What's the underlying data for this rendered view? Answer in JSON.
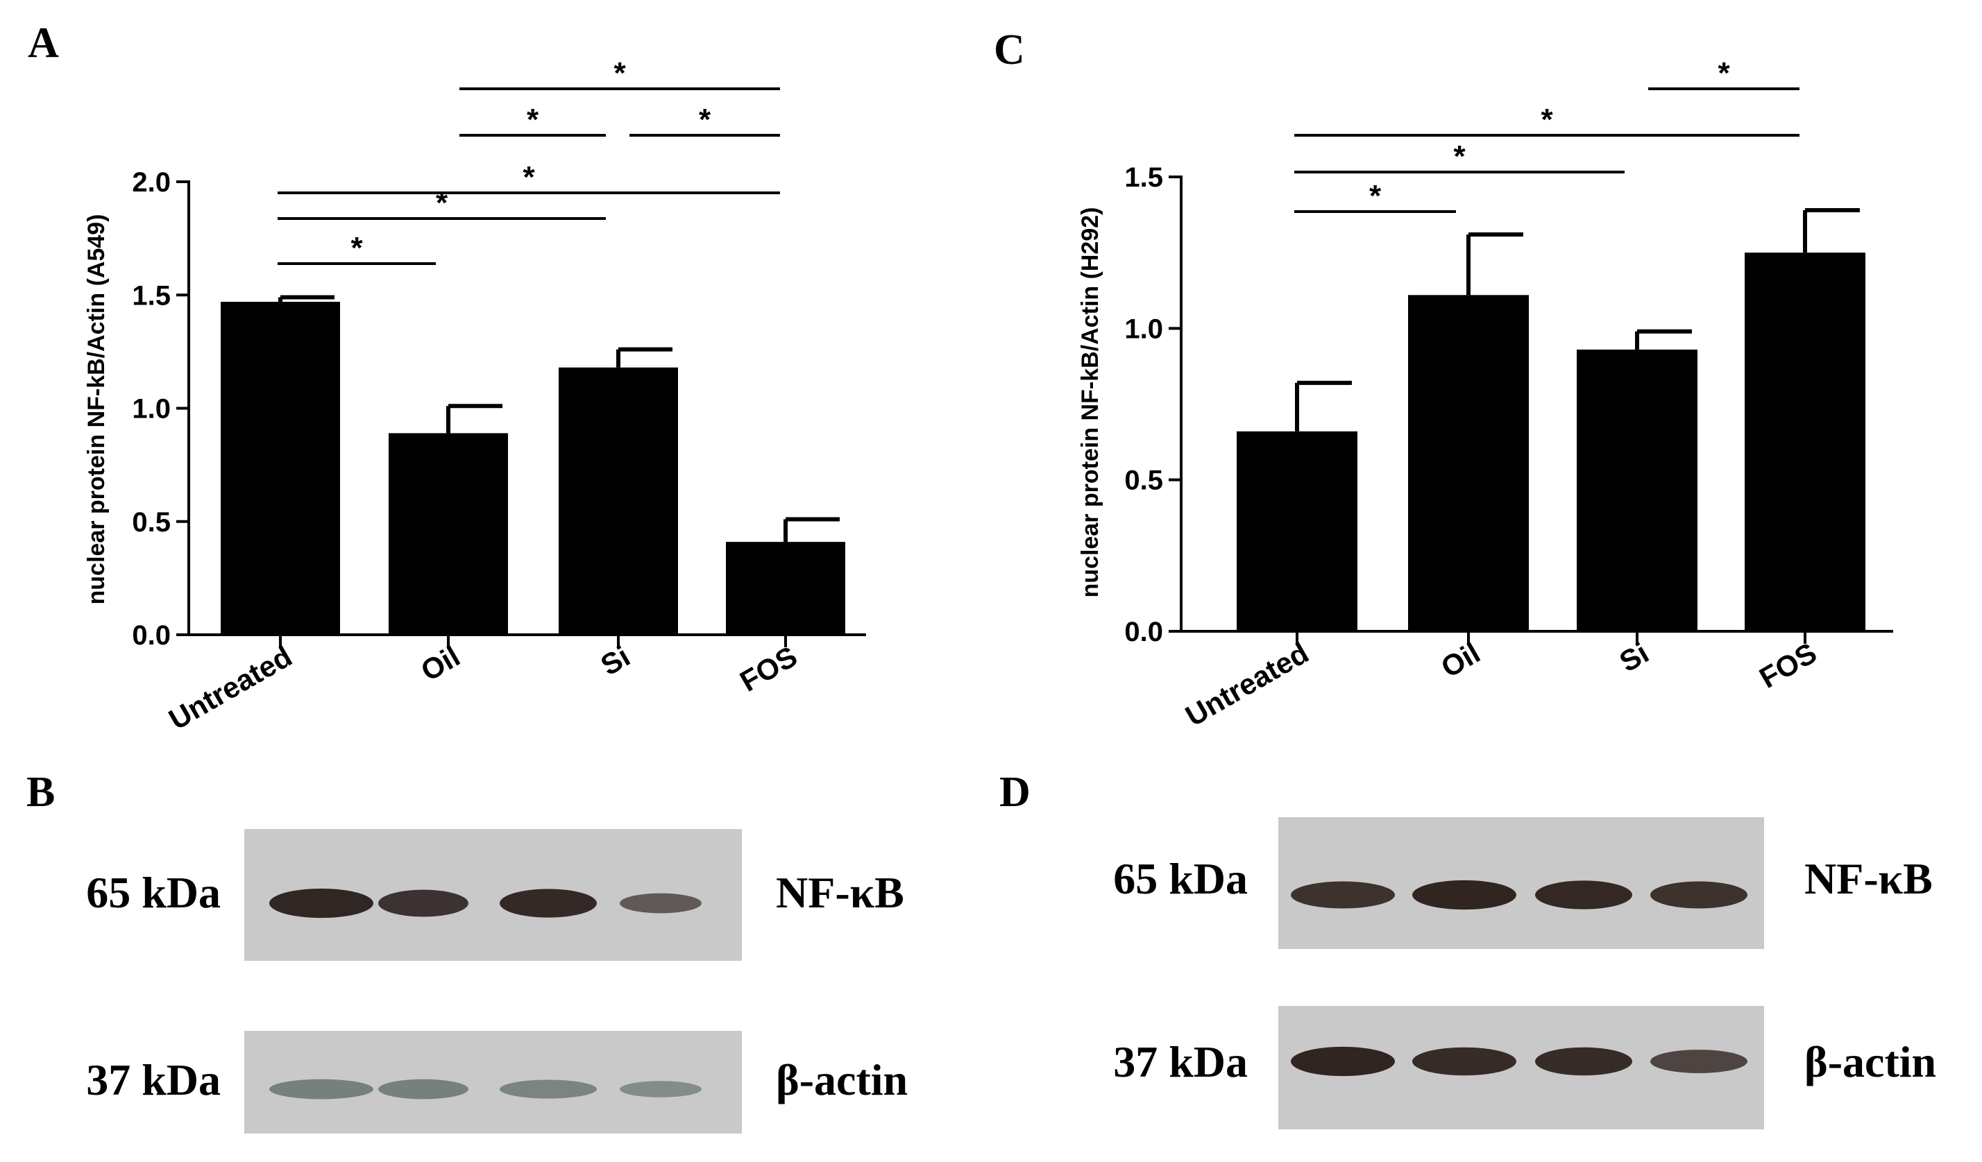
{
  "chart_data": [
    {
      "panel": "A",
      "type": "bar",
      "categories": [
        "Untreated",
        "Oil",
        "Si",
        "FOS"
      ],
      "values": [
        1.47,
        0.89,
        1.18,
        0.41
      ],
      "errors": [
        0.02,
        0.12,
        0.08,
        0.1
      ],
      "ylabel": "nuclear protein NF-kB/Actin (A549)",
      "ylim": [
        0,
        2.0
      ],
      "yticks": [
        "0.0",
        "0.5",
        "1.0",
        "1.5",
        "2.0"
      ],
      "bar_color": "#000000",
      "significance": [
        {
          "from": 0,
          "to": 1,
          "label": "*"
        },
        {
          "from": 0,
          "to": 2,
          "label": "*"
        },
        {
          "from": 0,
          "to": 3,
          "label": "*"
        },
        {
          "from": 1,
          "to": 2,
          "label": "*"
        },
        {
          "from": 2,
          "to": 3,
          "label": "*"
        },
        {
          "from": 1,
          "to": 3,
          "label": "*"
        }
      ]
    },
    {
      "panel": "C",
      "type": "bar",
      "categories": [
        "Untreated",
        "Oil",
        "Si",
        "FOS"
      ],
      "values": [
        0.66,
        1.11,
        0.93,
        1.25
      ],
      "errors": [
        0.16,
        0.2,
        0.06,
        0.14
      ],
      "ylabel": "nuclear protein NF-kB/Actin (H292)",
      "ylim": [
        0,
        1.5
      ],
      "yticks": [
        "0.0",
        "0.5",
        "1.0",
        "1.5"
      ],
      "bar_color": "#000000",
      "significance": [
        {
          "from": 0,
          "to": 1,
          "label": "*"
        },
        {
          "from": 0,
          "to": 2,
          "label": "*"
        },
        {
          "from": 0,
          "to": 3,
          "label": "*"
        },
        {
          "from": 2,
          "to": 3,
          "label": "*"
        }
      ]
    }
  ],
  "blots": [
    {
      "panel": "B",
      "rows": [
        {
          "marker": "65 kDa",
          "protein": "NF-κB",
          "intensity": [
            0.95,
            0.85,
            0.92,
            0.55
          ],
          "tint": "#2a1f1d"
        },
        {
          "marker": "37 kDa",
          "protein": "β-actin",
          "intensity": [
            0.55,
            0.55,
            0.5,
            0.4
          ],
          "tint": "#4b5a55"
        }
      ]
    },
    {
      "panel": "D",
      "rows": [
        {
          "marker": "65 kDa",
          "protein": "NF-κB",
          "intensity": [
            0.85,
            0.95,
            0.92,
            0.85
          ],
          "tint": "#2b1e1a"
        },
        {
          "marker": "37 kDa",
          "protein": "β-actin",
          "intensity": [
            0.95,
            0.9,
            0.9,
            0.7
          ],
          "tint": "#2b1e1a"
        }
      ]
    }
  ]
}
